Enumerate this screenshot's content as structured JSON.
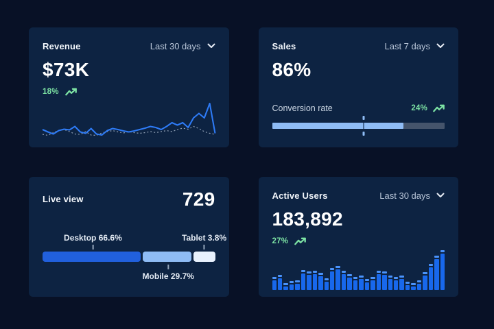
{
  "colors": {
    "page_bg": "#081126",
    "card_bg": "#0d2342",
    "text_primary": "#f2f6fb",
    "text_muted": "#bac7d9",
    "positive_green": "#7de3a4",
    "line_blue": "#2e7bf6",
    "line_dotted_gray": "#93a3b8",
    "bar_blue": "#1868ec",
    "bar_cap_blue": "#4a93fb",
    "progress_fill": "#8fbcf5",
    "progress_track": "#45546b"
  },
  "icons": {
    "dropdown": "chevron-down",
    "trend": "trending-up"
  },
  "cards": {
    "revenue": {
      "title": "Revenue",
      "range_label": "Last 30 days",
      "value": "$73K",
      "delta": "18%"
    },
    "sales": {
      "title": "Sales",
      "range_label": "Last 7 days",
      "value": "86%",
      "metric_label": "Conversion rate",
      "delta": "24%"
    },
    "live_view": {
      "title": "Live view",
      "value": "729"
    },
    "active_users": {
      "title": "Active Users",
      "range_label": "Last 30 days",
      "value": "183,892",
      "delta": "27%"
    }
  },
  "chart_data": [
    {
      "id": "revenue-trend",
      "type": "line",
      "title": "Revenue — Last 30 days",
      "ylim": [
        0,
        100
      ],
      "grid": false,
      "axes_hidden": true,
      "legend": "none",
      "series": [
        {
          "name": "current period",
          "style": "solid",
          "color": "#2e7bf6",
          "values": [
            20,
            13,
            7,
            17,
            21,
            19,
            29,
            13,
            9,
            23,
            7,
            4,
            17,
            23,
            20,
            16,
            13,
            16,
            20,
            24,
            29,
            26,
            20,
            29,
            40,
            33,
            40,
            26,
            54,
            67,
            54,
            96,
            9
          ]
        },
        {
          "name": "previous period",
          "style": "dotted",
          "color": "#93a3b8",
          "values": [
            6,
            3,
            11,
            17,
            20,
            14,
            7,
            6,
            14,
            4,
            3,
            10,
            14,
            17,
            13,
            10,
            14,
            11,
            9,
            11,
            14,
            11,
            14,
            17,
            14,
            20,
            24,
            21,
            29,
            23,
            14,
            9,
            6
          ]
        }
      ]
    },
    {
      "id": "sales-conversion",
      "type": "progress",
      "title": "Conversion rate",
      "value_pct": 86,
      "fill_pct": 76,
      "marker_pct": 53,
      "fill_color": "#8fbcf5",
      "track_color": "#45546b"
    },
    {
      "id": "live-view-devices",
      "type": "stacked-bar",
      "title": "Live view device split",
      "total": 729,
      "segments": [
        {
          "name": "Desktop",
          "pct": 66.6,
          "label": "Desktop 66.6%",
          "color": "#2160dd",
          "display_width": 143,
          "label_position": "top"
        },
        {
          "name": "Mobile",
          "pct": 29.7,
          "label": "Mobile 29.7%",
          "color": "#8fbcf5",
          "display_width": 71,
          "label_position": "bottom"
        },
        {
          "name": "Tablet",
          "pct": 3.8,
          "label": "Tablet 3.8%",
          "color": "#e8f1fd",
          "display_width": 31,
          "label_position": "top"
        }
      ]
    },
    {
      "id": "active-users-history",
      "type": "bar",
      "title": "Active Users — Last 30 days",
      "ylim": [
        0,
        100
      ],
      "grid": false,
      "axes_hidden": true,
      "bar_color": "#1868ec",
      "cap_color": "#4a93fb",
      "values": [
        33,
        38,
        17,
        22,
        25,
        50,
        47,
        48,
        43,
        30,
        55,
        60,
        48,
        40,
        33,
        37,
        28,
        33,
        48,
        47,
        37,
        32,
        37,
        20,
        17,
        25,
        45,
        65,
        87,
        100
      ]
    }
  ]
}
